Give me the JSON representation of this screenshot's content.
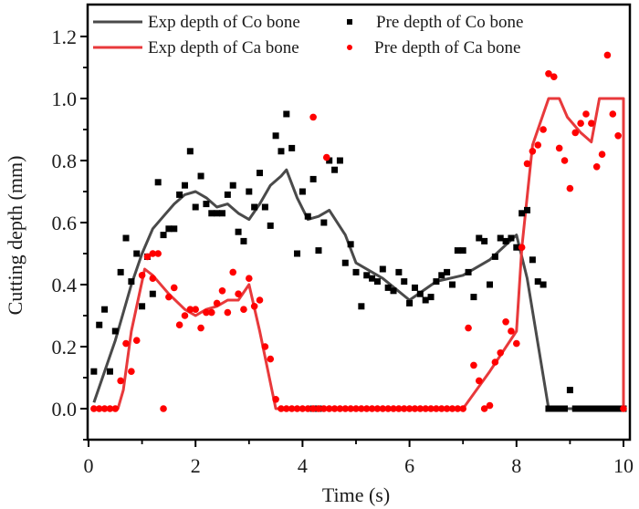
{
  "chart_data": {
    "type": "line+scatter",
    "title": "",
    "xlabel": "Time (s)",
    "ylabel": "Cutting depth (mm)",
    "xlim": [
      0,
      10.05
    ],
    "ylim": [
      -0.1,
      1.28
    ],
    "xticks": [
      0,
      2,
      4,
      6,
      8,
      10
    ],
    "xtick_labels": [
      "0",
      "2",
      "4",
      "6",
      "8",
      "10"
    ],
    "xminor": [
      1,
      3,
      5,
      7,
      9
    ],
    "yticks": [
      0.0,
      0.2,
      0.4,
      0.6,
      0.8,
      1.0,
      1.2
    ],
    "ytick_labels": [
      "0.0",
      "0.2",
      "0.4",
      "0.6",
      "0.8",
      "1.0",
      "1.2"
    ],
    "yminor": [
      -0.1,
      0.1,
      0.3,
      0.5,
      0.7,
      0.9,
      1.1
    ],
    "grid": false,
    "legend_position": "top",
    "series": [
      {
        "name": "Exp depth of Co bone",
        "kind": "line",
        "color": "#4a4a4a",
        "x": [
          0.1,
          0.5,
          0.8,
          1.0,
          1.2,
          1.4,
          1.6,
          1.8,
          2.0,
          2.2,
          2.4,
          2.6,
          2.8,
          3.0,
          3.2,
          3.4,
          3.6,
          3.7,
          3.9,
          4.1,
          4.3,
          4.5,
          4.8,
          5.0,
          5.5,
          6.0,
          6.5,
          7.0,
          7.5,
          8.0,
          8.2,
          8.6,
          10.0
        ],
        "y": [
          0.02,
          0.22,
          0.4,
          0.5,
          0.58,
          0.62,
          0.66,
          0.69,
          0.7,
          0.68,
          0.65,
          0.66,
          0.63,
          0.61,
          0.66,
          0.72,
          0.75,
          0.77,
          0.68,
          0.61,
          0.62,
          0.64,
          0.56,
          0.47,
          0.42,
          0.35,
          0.41,
          0.43,
          0.48,
          0.56,
          0.42,
          0.0,
          0.0
        ]
      },
      {
        "name": "Exp depth of Ca bone",
        "kind": "line",
        "color": "#e8393b",
        "x": [
          0.1,
          0.55,
          0.65,
          0.8,
          1.05,
          1.2,
          1.5,
          1.8,
          2.0,
          2.2,
          2.4,
          2.6,
          2.8,
          3.0,
          3.2,
          3.5,
          7.0,
          7.5,
          8.0,
          8.1,
          8.3,
          8.6,
          8.8,
          8.95,
          9.2,
          9.4,
          9.55,
          10.0,
          10.0
        ],
        "y": [
          0.0,
          0.0,
          0.06,
          0.25,
          0.45,
          0.43,
          0.37,
          0.32,
          0.3,
          0.32,
          0.33,
          0.35,
          0.35,
          0.4,
          0.25,
          0.0,
          0.0,
          0.12,
          0.25,
          0.52,
          0.85,
          1.0,
          1.0,
          0.94,
          0.89,
          0.86,
          1.0,
          1.0,
          0.0
        ]
      },
      {
        "name": "Pre depth of Co bone",
        "kind": "scatter",
        "marker": "square",
        "color": "#000000",
        "x": [
          0.1,
          0.2,
          0.3,
          0.4,
          0.5,
          0.6,
          0.7,
          0.8,
          0.9,
          1.0,
          1.1,
          1.2,
          1.3,
          1.4,
          1.5,
          1.6,
          1.7,
          1.8,
          1.9,
          2.0,
          2.1,
          2.2,
          2.3,
          2.4,
          2.5,
          2.6,
          2.7,
          2.8,
          2.9,
          3.0,
          3.1,
          3.2,
          3.3,
          3.4,
          3.5,
          3.6,
          3.7,
          3.8,
          3.9,
          4.0,
          4.1,
          4.2,
          4.3,
          4.4,
          4.5,
          4.6,
          4.7,
          4.8,
          4.9,
          5.0,
          5.1,
          5.2,
          5.3,
          5.4,
          5.5,
          5.6,
          5.7,
          5.8,
          5.9,
          6.0,
          6.1,
          6.2,
          6.3,
          6.4,
          6.5,
          6.6,
          6.7,
          6.8,
          6.9,
          7.0,
          7.1,
          7.2,
          7.3,
          7.4,
          7.5,
          7.6,
          7.7,
          7.8,
          7.9,
          8.0,
          8.1,
          8.2,
          8.3,
          8.4,
          8.5,
          8.6,
          8.7,
          8.8,
          8.9,
          9.0,
          9.1,
          9.2,
          9.3,
          9.4,
          9.5,
          9.6,
          9.7,
          9.8,
          9.9,
          10.0,
          4.2,
          4.3
        ],
        "y": [
          0.12,
          0.27,
          0.32,
          0.12,
          0.25,
          0.44,
          0.55,
          0.41,
          0.5,
          0.33,
          0.49,
          0.37,
          0.73,
          0.56,
          0.58,
          0.58,
          0.69,
          0.72,
          0.83,
          0.65,
          0.75,
          0.66,
          0.63,
          0.63,
          0.63,
          0.69,
          0.72,
          0.57,
          0.54,
          0.7,
          0.65,
          0.76,
          0.65,
          0.59,
          0.88,
          0.83,
          0.95,
          0.84,
          0.5,
          0.7,
          0.62,
          0.74,
          0.51,
          0.6,
          0.8,
          0.77,
          0.8,
          0.47,
          0.53,
          0.44,
          0.33,
          0.43,
          0.42,
          0.41,
          0.45,
          0.39,
          0.38,
          0.44,
          0.41,
          0.34,
          0.39,
          0.37,
          0.35,
          0.36,
          0.41,
          0.43,
          0.44,
          0.4,
          0.51,
          0.51,
          0.44,
          0.36,
          0.55,
          0.54,
          0.4,
          0.49,
          0.55,
          0.54,
          0.55,
          0.52,
          0.63,
          0.64,
          0.48,
          0.41,
          0.4,
          0.0,
          0.0,
          0.0,
          0.0,
          0.06,
          0.0,
          0.0,
          0.0,
          0.0,
          0.0,
          0.0,
          0.0,
          0.0,
          0.0,
          0.0,
          0.0,
          0.0
        ]
      },
      {
        "name": "Pre depth of Ca bone",
        "kind": "scatter",
        "marker": "circle",
        "color": "#ff0000",
        "x": [
          0.1,
          0.2,
          0.3,
          0.4,
          0.5,
          0.6,
          0.7,
          0.8,
          0.9,
          1.0,
          1.1,
          1.2,
          1.3,
          1.4,
          1.5,
          1.6,
          1.7,
          1.8,
          1.9,
          2.0,
          2.1,
          2.2,
          2.3,
          2.4,
          2.5,
          2.6,
          2.7,
          2.8,
          2.9,
          3.0,
          3.1,
          3.2,
          3.3,
          3.4,
          3.5,
          3.6,
          3.7,
          3.8,
          3.9,
          4.0,
          4.1,
          4.2,
          4.3,
          4.4,
          4.5,
          4.6,
          4.7,
          4.8,
          4.9,
          5.0,
          5.1,
          5.2,
          5.3,
          5.4,
          5.5,
          5.6,
          5.7,
          5.8,
          5.9,
          6.0,
          6.1,
          6.2,
          6.3,
          6.4,
          6.5,
          6.6,
          6.7,
          6.8,
          6.9,
          7.0,
          7.1,
          7.2,
          7.3,
          7.4,
          7.5,
          7.6,
          7.7,
          7.8,
          7.9,
          8.0,
          8.1,
          8.2,
          8.3,
          8.4,
          8.5,
          8.6,
          8.7,
          8.8,
          8.9,
          9.0,
          9.1,
          9.2,
          9.3,
          9.4,
          9.5,
          9.6,
          9.7,
          9.8,
          9.9,
          10.0,
          1.2,
          4.2,
          4.45
        ],
        "y": [
          0.0,
          0.0,
          0.0,
          0.0,
          0.0,
          0.09,
          0.21,
          0.12,
          0.22,
          0.43,
          0.49,
          0.42,
          0.5,
          0.0,
          0.36,
          0.39,
          0.27,
          0.3,
          0.32,
          0.32,
          0.26,
          0.31,
          0.31,
          0.34,
          0.38,
          0.31,
          0.44,
          0.37,
          0.32,
          0.42,
          0.33,
          0.35,
          0.2,
          0.16,
          0.03,
          0.0,
          0.0,
          0.0,
          0.0,
          0.0,
          0.0,
          0.0,
          0.0,
          0.0,
          0.0,
          0.0,
          0.0,
          0.0,
          0.0,
          0.0,
          0.0,
          0.0,
          0.0,
          0.0,
          0.0,
          0.0,
          0.0,
          0.0,
          0.0,
          0.0,
          0.0,
          0.0,
          0.0,
          0.0,
          0.0,
          0.0,
          0.0,
          0.0,
          0.0,
          0.0,
          0.26,
          0.14,
          0.09,
          0.0,
          0.01,
          0.15,
          0.18,
          0.28,
          0.25,
          0.21,
          0.52,
          0.79,
          0.83,
          0.85,
          0.9,
          1.08,
          1.07,
          0.84,
          0.8,
          0.71,
          0.89,
          0.92,
          0.95,
          0.92,
          0.78,
          0.82,
          1.14,
          0.95,
          0.88,
          0.0,
          0.5,
          0.94,
          0.81
        ]
      }
    ]
  }
}
